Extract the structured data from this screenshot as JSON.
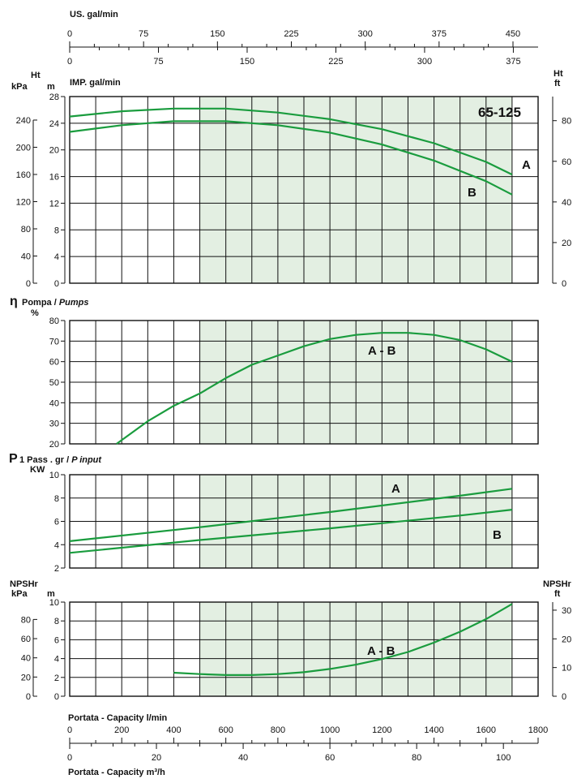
{
  "model": "65-125",
  "shade_color": "#e3efe2",
  "curve_color": "#1a9c3e",
  "grid_color": "#111111",
  "top_axes": {
    "us_label": "US. gal/min",
    "us_ticks": [
      "0",
      "75",
      "150",
      "225",
      "300",
      "375",
      "450"
    ],
    "imp_label": "IMP. gal/min",
    "imp_ticks": [
      "0",
      "75",
      "150",
      "225",
      "300",
      "375"
    ]
  },
  "bottom_axes": {
    "lmin_label": "Portata - Capacity l/min",
    "lmin_ticks": [
      "0",
      "200",
      "400",
      "600",
      "800",
      "1000",
      "1200",
      "1400",
      "1600",
      "1800"
    ],
    "m3h_label": "Portata - Capacity m³/h",
    "m3h_ticks": [
      "0",
      "20",
      "40",
      "60",
      "80",
      "100"
    ]
  },
  "panels": {
    "head": {
      "left_label_top": "Ht",
      "left_label_kpa": "kPa",
      "left_label_m": "m",
      "right_label_top": "Ht",
      "right_label_unit": "ft",
      "kpa_ticks": [
        "0",
        "40",
        "80",
        "120",
        "160",
        "200",
        "240"
      ],
      "m_ticks": [
        "0",
        "4",
        "8",
        "12",
        "16",
        "20",
        "24",
        "28"
      ],
      "ft_ticks": [
        "0",
        "20",
        "40",
        "60",
        "80"
      ]
    },
    "eff": {
      "title_symbol": "η",
      "title_main": "Pompa / ",
      "title_italic": "Pumps",
      "unit": "%",
      "ticks": [
        "20",
        "30",
        "40",
        "50",
        "60",
        "70",
        "80"
      ]
    },
    "power": {
      "title_symbol": "P",
      "title_sub": "1 Pass . gr / ",
      "title_italic": "P input",
      "unit": "KW",
      "ticks": [
        "2",
        "4",
        "6",
        "8",
        "10"
      ]
    },
    "npsh": {
      "left_label_top": "NPSHr",
      "left_label_kpa": "kPa",
      "left_label_m": "m",
      "right_label_top": "NPSHr",
      "right_label_unit": "ft",
      "kpa_ticks": [
        "0",
        "20",
        "40",
        "60",
        "80"
      ],
      "m_ticks": [
        "0",
        "2",
        "4",
        "6",
        "8",
        "10"
      ],
      "ft_ticks": [
        "0",
        "10",
        "20",
        "30"
      ]
    }
  },
  "chart_data": [
    {
      "type": "line",
      "title": "65-125",
      "xlabel": "Portata - Capacity l/min",
      "ylabel": "Ht m",
      "xlim": [
        0,
        1800
      ],
      "ylim": [
        0,
        28
      ],
      "grid": true,
      "shaded_range_x": [
        500,
        1700
      ],
      "series": [
        {
          "name": "A",
          "x": [
            0,
            200,
            400,
            600,
            800,
            1000,
            1200,
            1400,
            1600,
            1700
          ],
          "y": [
            25.0,
            25.8,
            26.2,
            26.2,
            25.6,
            24.6,
            23.1,
            21.0,
            18.2,
            16.3
          ]
        },
        {
          "name": "B",
          "x": [
            0,
            200,
            400,
            600,
            800,
            1000,
            1200,
            1400,
            1600,
            1700
          ],
          "y": [
            22.7,
            23.7,
            24.3,
            24.3,
            23.7,
            22.6,
            20.8,
            18.4,
            15.3,
            13.3
          ]
        }
      ]
    },
    {
      "type": "line",
      "title": "η Pompa / Pumps",
      "xlabel": "Portata - Capacity l/min",
      "ylabel": "%",
      "xlim": [
        0,
        1800
      ],
      "ylim": [
        20,
        80
      ],
      "grid": true,
      "shaded_range_x": [
        500,
        1700
      ],
      "series": [
        {
          "name": "A - B",
          "x": [
            180,
            300,
            400,
            500,
            600,
            700,
            800,
            900,
            1000,
            1100,
            1200,
            1300,
            1400,
            1500,
            1600,
            1700
          ],
          "y": [
            20,
            31,
            38.5,
            44.5,
            52,
            58.5,
            63,
            67.5,
            71,
            73,
            74,
            74,
            73,
            70.5,
            66,
            60
          ]
        }
      ]
    },
    {
      "type": "line",
      "title": "P1 Pass . gr / P input",
      "xlabel": "Portata - Capacity l/min",
      "ylabel": "KW",
      "xlim": [
        0,
        1800
      ],
      "ylim": [
        2,
        10
      ],
      "grid": true,
      "shaded_range_x": [
        500,
        1700
      ],
      "series": [
        {
          "name": "A",
          "x": [
            0,
            500,
            1000,
            1500,
            1700
          ],
          "y": [
            4.3,
            5.5,
            6.8,
            8.2,
            8.8
          ]
        },
        {
          "name": "B",
          "x": [
            0,
            500,
            1000,
            1500,
            1700
          ],
          "y": [
            3.3,
            4.4,
            5.4,
            6.5,
            7.0
          ]
        }
      ]
    },
    {
      "type": "line",
      "title": "NPSHr",
      "xlabel": "Portata - Capacity l/min",
      "ylabel": "NPSHr m",
      "xlim": [
        0,
        1800
      ],
      "ylim": [
        0,
        10
      ],
      "grid": true,
      "shaded_range_x": [
        500,
        1700
      ],
      "series": [
        {
          "name": "A - B",
          "x": [
            400,
            500,
            600,
            700,
            800,
            900,
            1000,
            1100,
            1200,
            1300,
            1400,
            1500,
            1600,
            1700
          ],
          "y": [
            2.5,
            2.35,
            2.25,
            2.25,
            2.35,
            2.55,
            2.9,
            3.35,
            3.95,
            4.7,
            5.7,
            6.85,
            8.2,
            9.8
          ]
        }
      ]
    }
  ]
}
